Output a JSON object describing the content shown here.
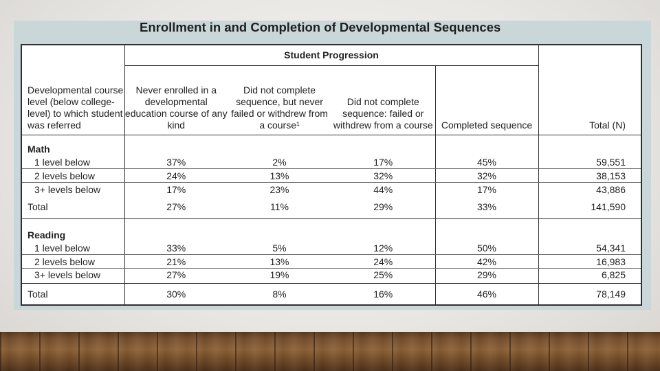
{
  "slide": {
    "title": "Enrollment in and Completion of Developmental Sequences"
  },
  "table": {
    "group_header": "Student Progression",
    "headers": {
      "course_level": "Developmental course level (below college-level) to which student was referred",
      "never_enrolled": "Never enrolled in a developmental education course of any kind",
      "not_complete_no_fail": "Did not complete sequence, but never failed or withdrew from a course¹",
      "not_complete_failed": "Did not complete sequence:  failed or withdrew from a course",
      "completed": "Completed sequence",
      "total": "Total (N)"
    },
    "math": {
      "label": "Math",
      "rows": [
        {
          "label": "1 level below",
          "never": "37%",
          "noncomplete": "2%",
          "failed": "17%",
          "completed": "45%",
          "n": "59,551"
        },
        {
          "label": "2 levels below",
          "never": "24%",
          "noncomplete": "13%",
          "failed": "32%",
          "completed": "32%",
          "n": "38,153"
        },
        {
          "label": "3+ levels below",
          "never": "17%",
          "noncomplete": "23%",
          "failed": "44%",
          "completed": "17%",
          "n": "43,886"
        }
      ],
      "total": {
        "label": "Total",
        "never": "27%",
        "noncomplete": "11%",
        "failed": "29%",
        "completed": "33%",
        "n": "141,590"
      }
    },
    "reading": {
      "label": "Reading",
      "rows": [
        {
          "label": "1 level below",
          "never": "33%",
          "noncomplete": "5%",
          "failed": "12%",
          "completed": "50%",
          "n": "54,341"
        },
        {
          "label": "2 levels below",
          "never": "21%",
          "noncomplete": "13%",
          "failed": "24%",
          "completed": "42%",
          "n": "16,983"
        },
        {
          "label": "3+ levels below",
          "never": "27%",
          "noncomplete": "19%",
          "failed": "25%",
          "completed": "29%",
          "n": "6,825"
        }
      ],
      "total": {
        "label": "Total",
        "never": "30%",
        "noncomplete": "8%",
        "failed": "16%",
        "completed": "46%",
        "n": "78,149"
      }
    }
  }
}
